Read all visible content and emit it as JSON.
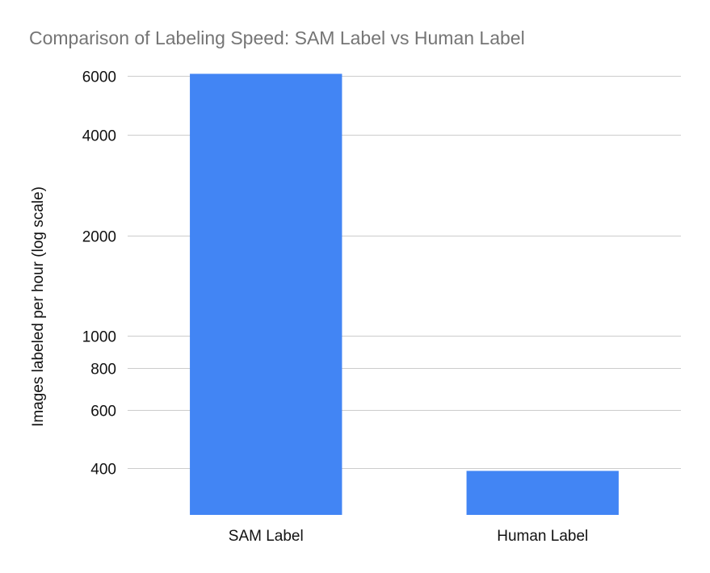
{
  "chart_data": {
    "type": "bar",
    "title": "Comparison of Labeling Speed: SAM Label vs Human Label",
    "xlabel": "",
    "ylabel": "Images labeled per hour (log scale)",
    "yscale": "log",
    "ylim": [
      290,
      6150
    ],
    "yticks": [
      {
        "value": 400,
        "label": "400"
      },
      {
        "value": 600,
        "label": "600"
      },
      {
        "value": 800,
        "label": "800"
      },
      {
        "value": 1000,
        "label": "1000"
      },
      {
        "value": 2000,
        "label": "2000"
      },
      {
        "value": 4000,
        "label": "4000"
      },
      {
        "value": 6000,
        "label": "6000"
      }
    ],
    "categories": [
      "SAM Label",
      "Human Label"
    ],
    "values": [
      6100,
      393
    ],
    "bar_color": "#4285f4",
    "gridlines": true,
    "legend": "none"
  }
}
